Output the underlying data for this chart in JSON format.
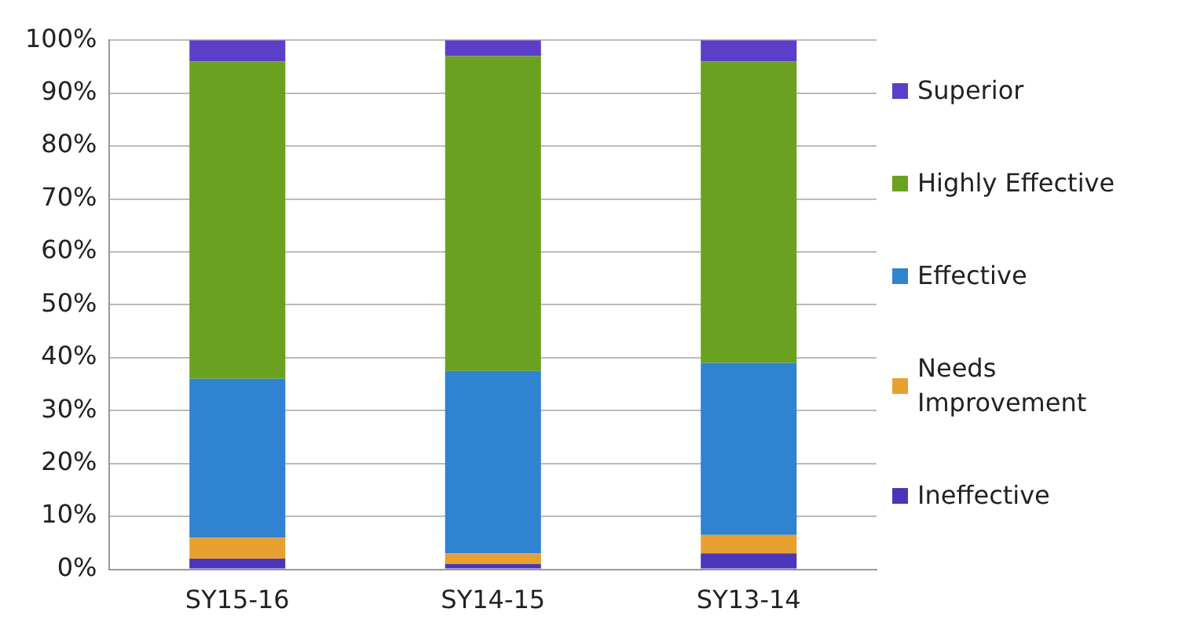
{
  "chart_data": {
    "type": "bar",
    "stacked": true,
    "categories": [
      "SY15-16",
      "SY14-15",
      "SY13-14"
    ],
    "series": [
      {
        "name": "Ineffective",
        "color": "#4b35b8",
        "values": [
          2,
          1,
          3
        ]
      },
      {
        "name": "Needs Improvement",
        "color": "#e8a030",
        "values": [
          4,
          2,
          3.5
        ]
      },
      {
        "name": "Effective",
        "color": "#2f83d0",
        "values": [
          30,
          34.5,
          32.5
        ]
      },
      {
        "name": "Highly Effective",
        "color": "#6aa120",
        "values": [
          60,
          59.5,
          57
        ]
      },
      {
        "name": "Superior",
        "color": "#5b3fc8",
        "values": [
          4,
          3,
          4
        ]
      }
    ],
    "ylim": [
      0,
      100
    ],
    "yticks": [
      {
        "value": 0,
        "label": "0%"
      },
      {
        "value": 10,
        "label": "10%"
      },
      {
        "value": 20,
        "label": "20%"
      },
      {
        "value": 30,
        "label": "30%"
      },
      {
        "value": 40,
        "label": "40%"
      },
      {
        "value": 50,
        "label": "50%"
      },
      {
        "value": 60,
        "label": "60%"
      },
      {
        "value": 70,
        "label": "70%"
      },
      {
        "value": 80,
        "label": "80%"
      },
      {
        "value": 90,
        "label": "90%"
      },
      {
        "value": 100,
        "label": "100%"
      }
    ],
    "grid": "y",
    "legend": "right"
  }
}
